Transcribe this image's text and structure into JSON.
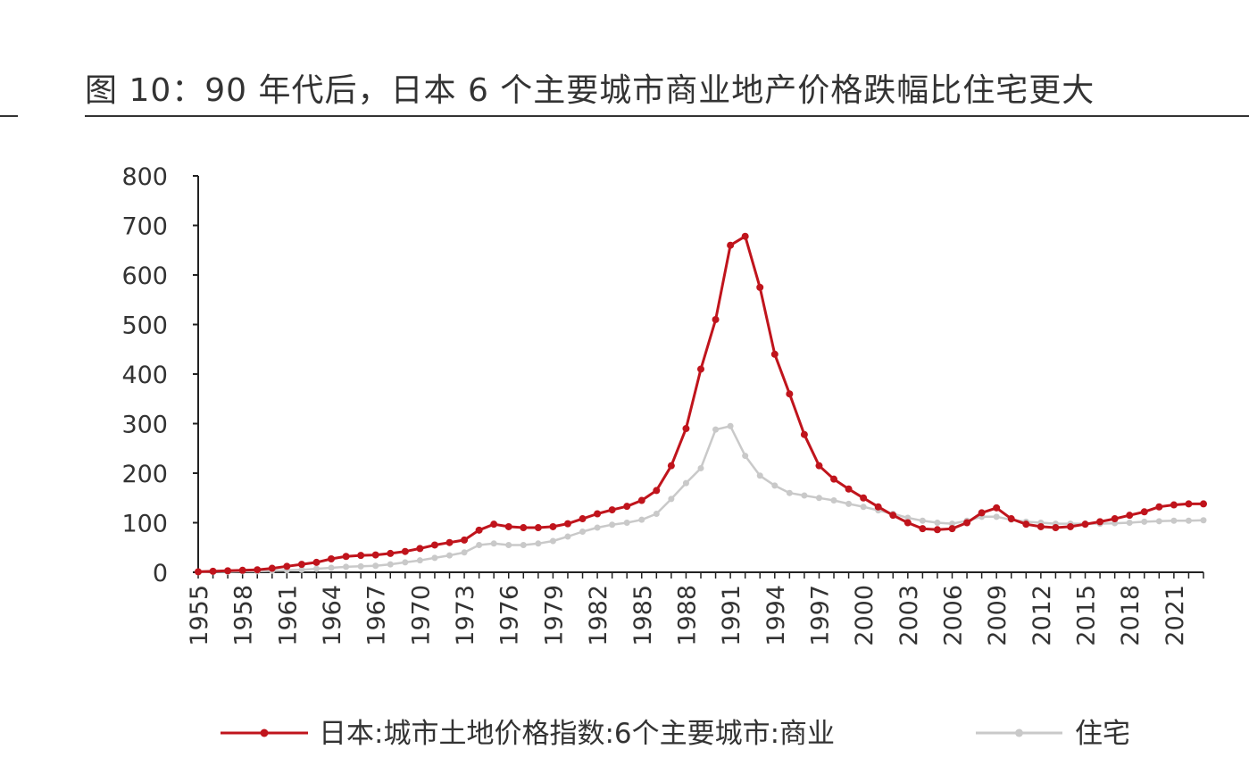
{
  "title": "图  10：90 年代后，日本 6 个主要城市商业地产价格跌幅比住宅更大",
  "chart_data": {
    "type": "line",
    "title": "图  10：90 年代后，日本 6 个主要城市商业地产价格跌幅比住宅更大",
    "xlabel": "",
    "ylabel": "",
    "ylim": [
      0,
      800
    ],
    "yticks": [
      0,
      100,
      200,
      300,
      400,
      500,
      600,
      700,
      800
    ],
    "xtick_labels": [
      "1955",
      "1958",
      "1961",
      "1964",
      "1967",
      "1970",
      "1973",
      "1976",
      "1979",
      "1982",
      "1985",
      "1988",
      "1991",
      "1994",
      "1997",
      "2000",
      "2003",
      "2006",
      "2009",
      "2012",
      "2015",
      "2018",
      "2021"
    ],
    "x": [
      1955,
      1956,
      1957,
      1958,
      1959,
      1960,
      1961,
      1962,
      1963,
      1964,
      1965,
      1966,
      1967,
      1968,
      1969,
      1970,
      1971,
      1972,
      1973,
      1974,
      1975,
      1976,
      1977,
      1978,
      1979,
      1980,
      1981,
      1982,
      1983,
      1984,
      1985,
      1986,
      1987,
      1988,
      1989,
      1990,
      1991,
      1992,
      1993,
      1994,
      1995,
      1996,
      1997,
      1998,
      1999,
      2000,
      2001,
      2002,
      2003,
      2004,
      2005,
      2006,
      2007,
      2008,
      2009,
      2010,
      2011,
      2012,
      2013,
      2014,
      2015,
      2016,
      2017,
      2018,
      2019,
      2020,
      2021,
      2022,
      2023
    ],
    "grid": false,
    "legend_position": "bottom",
    "series": [
      {
        "name": "日本:城市土地价格指数:6个主要城市:商业",
        "color": "#c0141c",
        "values": [
          1,
          2,
          3,
          4,
          5,
          8,
          12,
          16,
          20,
          27,
          32,
          34,
          35,
          38,
          42,
          48,
          55,
          60,
          65,
          85,
          97,
          92,
          90,
          90,
          92,
          98,
          108,
          118,
          126,
          133,
          145,
          165,
          215,
          290,
          410,
          510,
          660,
          678,
          575,
          440,
          360,
          278,
          215,
          188,
          168,
          150,
          132,
          115,
          100,
          88,
          86,
          88,
          100,
          120,
          130,
          108,
          97,
          92,
          90,
          92,
          97,
          102,
          108,
          115,
          122,
          132,
          136,
          138,
          138
        ]
      },
      {
        "name": "住宅",
        "color": "#c9c9c9",
        "values": [
          0,
          1,
          1,
          2,
          2,
          3,
          4,
          5,
          7,
          9,
          11,
          12,
          13,
          16,
          20,
          24,
          29,
          34,
          40,
          55,
          58,
          55,
          55,
          58,
          63,
          72,
          82,
          90,
          96,
          100,
          106,
          118,
          148,
          180,
          210,
          288,
          295,
          235,
          195,
          175,
          160,
          155,
          150,
          145,
          138,
          132,
          125,
          118,
          110,
          104,
          100,
          98,
          104,
          112,
          112,
          106,
          102,
          100,
          98,
          98,
          98,
          98,
          99,
          100,
          102,
          103,
          104,
          104,
          105
        ]
      }
    ]
  }
}
